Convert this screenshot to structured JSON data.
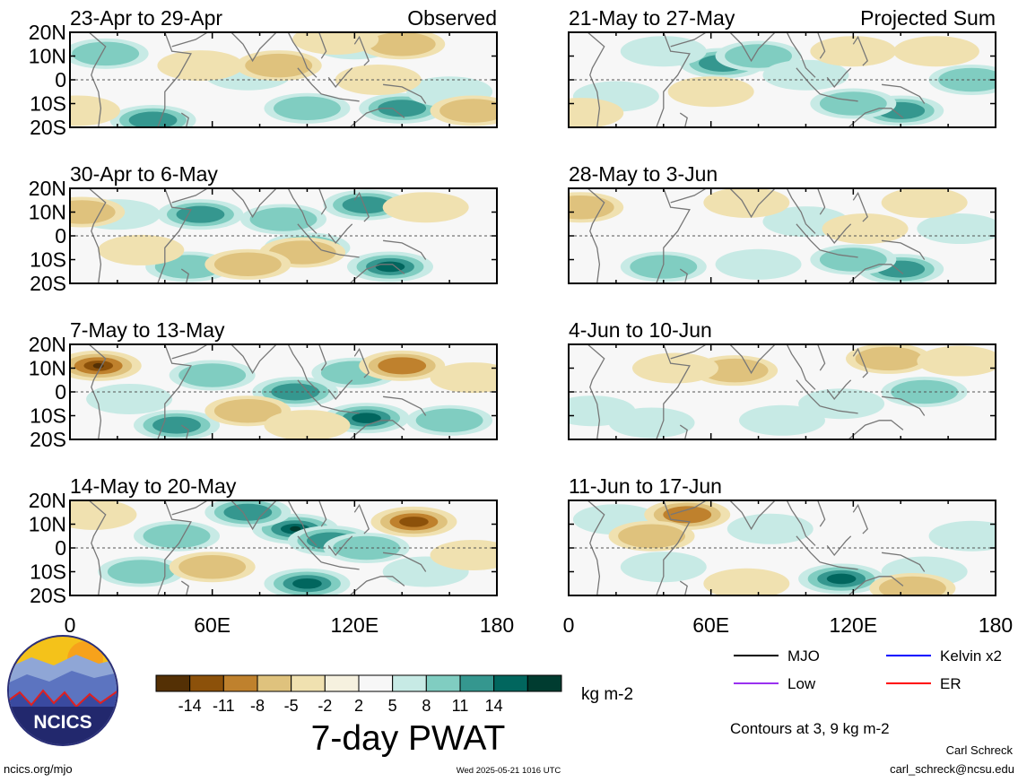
{
  "chart_data": {
    "type": "heatmap",
    "title": "7-day PWAT",
    "x_axis": {
      "range": [
        0,
        180
      ],
      "ticks": [
        0,
        60,
        120,
        180
      ],
      "tick_labels": [
        "0",
        "60E",
        "120E",
        "180"
      ]
    },
    "y_axis": {
      "range": [
        -20,
        20
      ],
      "ticks": [
        20,
        10,
        0,
        -10,
        -20
      ],
      "tick_labels": [
        "20N",
        "10N",
        "0",
        "10S",
        "20S"
      ]
    },
    "panel_groups": [
      "Observed",
      "Projected Sum"
    ],
    "panels": [
      {
        "column": "Observed",
        "label": "23-Apr to 29-Apr",
        "corner_label": "Observed",
        "blobs": [
          {
            "lon": 140,
            "lat": -12,
            "value": 10
          },
          {
            "lon": 35,
            "lat": -17,
            "value": 9
          },
          {
            "lon": 15,
            "lat": 11,
            "value": 5
          },
          {
            "lon": 75,
            "lat": 2,
            "value": 4
          },
          {
            "lon": 100,
            "lat": -12,
            "value": 5
          },
          {
            "lon": 120,
            "lat": 15,
            "value": 4
          },
          {
            "lon": 160,
            "lat": -5,
            "value": 3
          },
          {
            "lon": 88,
            "lat": 6,
            "value": -5
          },
          {
            "lon": 55,
            "lat": 6,
            "value": -4
          },
          {
            "lon": 170,
            "lat": -13,
            "value": -6
          },
          {
            "lon": 140,
            "lat": 15,
            "value": -5
          },
          {
            "lon": 112,
            "lat": 17,
            "value": -4
          },
          {
            "lon": 3,
            "lat": -13,
            "value": -4
          },
          {
            "lon": 130,
            "lat": 0,
            "value": -3
          }
        ]
      },
      {
        "column": "Observed",
        "label": "30-Apr to 6-May",
        "corner_label": "",
        "blobs": [
          {
            "lon": 55,
            "lat": 9,
            "value": 10
          },
          {
            "lon": 135,
            "lat": -13,
            "value": 12
          },
          {
            "lon": 125,
            "lat": 13,
            "value": 9
          },
          {
            "lon": 50,
            "lat": -13,
            "value": 6
          },
          {
            "lon": 100,
            "lat": -5,
            "value": 5
          },
          {
            "lon": 90,
            "lat": 7,
            "value": 5
          },
          {
            "lon": 20,
            "lat": 9,
            "value": 4
          },
          {
            "lon": 98,
            "lat": -7,
            "value": -5
          },
          {
            "lon": 150,
            "lat": 12,
            "value": -4
          },
          {
            "lon": 5,
            "lat": 10,
            "value": -5
          },
          {
            "lon": 75,
            "lat": -12,
            "value": -5
          },
          {
            "lon": 30,
            "lat": -6,
            "value": -4
          }
        ]
      },
      {
        "column": "Observed",
        "label": "7-May to 13-May",
        "corner_label": "",
        "blobs": [
          {
            "lon": 95,
            "lat": 0,
            "value": 9
          },
          {
            "lon": 45,
            "lat": -14,
            "value": 10
          },
          {
            "lon": 125,
            "lat": -11,
            "value": 11
          },
          {
            "lon": 60,
            "lat": 7,
            "value": 7
          },
          {
            "lon": 120,
            "lat": 8,
            "value": 5
          },
          {
            "lon": 160,
            "lat": -12,
            "value": 5
          },
          {
            "lon": 25,
            "lat": -3,
            "value": 4
          },
          {
            "lon": 12,
            "lat": 11,
            "value": -14
          },
          {
            "lon": 140,
            "lat": 11,
            "value": -9
          },
          {
            "lon": 75,
            "lat": -8,
            "value": -5
          },
          {
            "lon": 100,
            "lat": -14,
            "value": -4
          },
          {
            "lon": 170,
            "lat": 6,
            "value": -4
          }
        ]
      },
      {
        "column": "Observed",
        "label": "14-May to 20-May",
        "corner_label": "",
        "blobs": [
          {
            "lon": 95,
            "lat": 8,
            "value": 14
          },
          {
            "lon": 100,
            "lat": -15,
            "value": 13
          },
          {
            "lon": 110,
            "lat": 3,
            "value": 9
          },
          {
            "lon": 75,
            "lat": 15,
            "value": 10
          },
          {
            "lon": 125,
            "lat": 0,
            "value": 7
          },
          {
            "lon": 45,
            "lat": 5,
            "value": 5
          },
          {
            "lon": 30,
            "lat": -10,
            "value": 5
          },
          {
            "lon": 150,
            "lat": -10,
            "value": 4
          },
          {
            "lon": 145,
            "lat": 11,
            "value": -11
          },
          {
            "lon": 60,
            "lat": -8,
            "value": -5
          },
          {
            "lon": 170,
            "lat": -3,
            "value": -4
          },
          {
            "lon": 10,
            "lat": 14,
            "value": -4
          }
        ]
      },
      {
        "column": "Projected Sum",
        "label": "21-May to 27-May",
        "corner_label": "Projected Sum",
        "blobs": [
          {
            "lon": 140,
            "lat": -13,
            "value": 10
          },
          {
            "lon": 65,
            "lat": 7,
            "value": 8
          },
          {
            "lon": 80,
            "lat": 10,
            "value": 7
          },
          {
            "lon": 120,
            "lat": -10,
            "value": 6
          },
          {
            "lon": 20,
            "lat": -7,
            "value": 4
          },
          {
            "lon": 170,
            "lat": 0,
            "value": 5
          },
          {
            "lon": 100,
            "lat": 2,
            "value": 4
          },
          {
            "lon": 40,
            "lat": 12,
            "value": 3
          },
          {
            "lon": 155,
            "lat": 12,
            "value": -4
          },
          {
            "lon": 5,
            "lat": -14,
            "value": -3
          },
          {
            "lon": 120,
            "lat": 12,
            "value": -3
          },
          {
            "lon": 60,
            "lat": -5,
            "value": -3
          }
        ]
      },
      {
        "column": "Projected Sum",
        "label": "28-May to 3-Jun",
        "corner_label": "",
        "blobs": [
          {
            "lon": 140,
            "lat": -14,
            "value": 8
          },
          {
            "lon": 40,
            "lat": -13,
            "value": 5
          },
          {
            "lon": 120,
            "lat": -10,
            "value": 5
          },
          {
            "lon": 100,
            "lat": 6,
            "value": 3
          },
          {
            "lon": 165,
            "lat": 3,
            "value": 4
          },
          {
            "lon": 80,
            "lat": -12,
            "value": 4
          },
          {
            "lon": 5,
            "lat": 12,
            "value": -5
          },
          {
            "lon": 75,
            "lat": 14,
            "value": -3
          },
          {
            "lon": 150,
            "lat": 14,
            "value": -3
          },
          {
            "lon": 125,
            "lat": 3,
            "value": -3
          }
        ]
      },
      {
        "column": "Projected Sum",
        "label": "4-Jun to 10-Jun",
        "corner_label": "",
        "blobs": [
          {
            "lon": 35,
            "lat": -13,
            "value": 4
          },
          {
            "lon": 150,
            "lat": 0,
            "value": 5
          },
          {
            "lon": 90,
            "lat": -12,
            "value": 3
          },
          {
            "lon": 115,
            "lat": -5,
            "value": 3
          },
          {
            "lon": 10,
            "lat": -8,
            "value": 3
          },
          {
            "lon": 70,
            "lat": 9,
            "value": -5
          },
          {
            "lon": 135,
            "lat": 14,
            "value": -5
          },
          {
            "lon": 165,
            "lat": 13,
            "value": -4
          },
          {
            "lon": 45,
            "lat": 10,
            "value": -3
          }
        ]
      },
      {
        "column": "Projected Sum",
        "label": "11-Jun to 17-Jun",
        "corner_label": "",
        "blobs": [
          {
            "lon": 115,
            "lat": -13,
            "value": 11
          },
          {
            "lon": 85,
            "lat": 8,
            "value": 4
          },
          {
            "lon": 40,
            "lat": -8,
            "value": 4
          },
          {
            "lon": 150,
            "lat": -10,
            "value": 4
          },
          {
            "lon": 170,
            "lat": 5,
            "value": 3
          },
          {
            "lon": 20,
            "lat": 12,
            "value": 3
          },
          {
            "lon": 50,
            "lat": 14,
            "value": -10
          },
          {
            "lon": 35,
            "lat": 5,
            "value": -7
          },
          {
            "lon": 145,
            "lat": -17,
            "value": -6
          },
          {
            "lon": 75,
            "lat": -15,
            "value": -4
          }
        ]
      }
    ],
    "colorbar": {
      "labels": [
        "-14",
        "-11",
        "-8",
        "-5",
        "-2",
        "2",
        "5",
        "8",
        "11",
        "14"
      ],
      "colors": [
        "#543005",
        "#8c510a",
        "#bf812d",
        "#dfc27d",
        "#f0e1b0",
        "#f6f1df",
        "#f7f7f7",
        "#c7eae5",
        "#80cdc1",
        "#35978f",
        "#01665e",
        "#003c30"
      ],
      "unit": "kg m-2"
    },
    "legend": {
      "placement": "bottom-right",
      "entries": [
        {
          "label": "MJO",
          "color": "#000000"
        },
        {
          "label": "Kelvin x2",
          "color": "#0000ff"
        },
        {
          "label": "Low",
          "color": "#9a31f0"
        },
        {
          "label": "ER",
          "color": "#ff0000"
        }
      ]
    },
    "contour_note": "Contours at 3, 9 kg m-2"
  },
  "footer": {
    "logo_text": "NCICS",
    "site": "ncics.org/mjo",
    "timestamp": "Wed 2025-05-21 1016 UTC",
    "author": "Carl Schreck",
    "email": "carl_schreck@ncsu.edu"
  }
}
